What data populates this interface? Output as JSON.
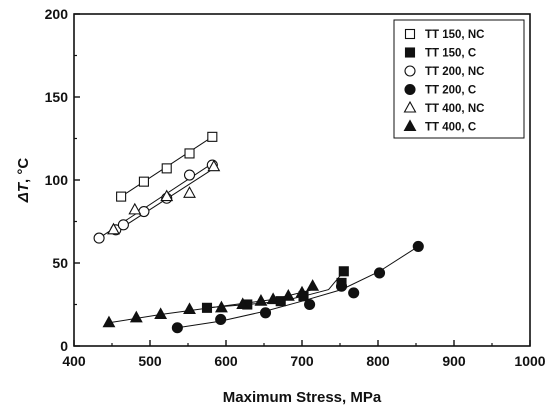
{
  "chart_data": {
    "type": "scatter",
    "xlabel": "Maximum Stress, MPa",
    "ylabel_symbol": "ΔT",
    "ylabel_unit": ", °C",
    "xlim": [
      400,
      1000
    ],
    "ylim": [
      0,
      200
    ],
    "x_ticks": [
      400,
      500,
      600,
      700,
      800,
      900,
      1000
    ],
    "y_ticks": [
      0,
      50,
      100,
      150,
      200
    ],
    "grid": false,
    "legend_position": "top-right",
    "series": [
      {
        "name": "TT 150, NC",
        "marker": "square-open",
        "points": [
          [
            462,
            90
          ],
          [
            492,
            99
          ],
          [
            522,
            107
          ],
          [
            552,
            116
          ],
          [
            582,
            126
          ]
        ],
        "fit": [
          [
            462,
            90
          ],
          [
            582,
            126
          ]
        ]
      },
      {
        "name": "TT 150, C",
        "marker": "square-filled",
        "points": [
          [
            575,
            23
          ],
          [
            628,
            25
          ],
          [
            672,
            27
          ],
          [
            702,
            30
          ],
          [
            752,
            38
          ],
          [
            755,
            45
          ]
        ],
        "fit": [
          [
            575,
            23
          ],
          [
            628,
            25
          ],
          [
            672,
            27
          ],
          [
            702,
            30
          ],
          [
            735,
            34
          ],
          [
            755,
            45
          ]
        ]
      },
      {
        "name": "TT 200, NC",
        "marker": "circle-open",
        "points": [
          [
            433,
            65
          ],
          [
            455,
            70
          ],
          [
            465,
            73
          ],
          [
            492,
            81
          ],
          [
            522,
            89
          ],
          [
            552,
            103
          ],
          [
            582,
            109
          ]
        ],
        "fit": [
          [
            433,
            65
          ],
          [
            582,
            110
          ]
        ]
      },
      {
        "name": "TT 200, C",
        "marker": "circle-filled",
        "points": [
          [
            536,
            11
          ],
          [
            593,
            16
          ],
          [
            652,
            20
          ],
          [
            710,
            25
          ],
          [
            752,
            36
          ],
          [
            768,
            32
          ],
          [
            802,
            44
          ],
          [
            853,
            60
          ]
        ],
        "fit": [
          [
            536,
            11
          ],
          [
            593,
            15
          ],
          [
            652,
            21
          ],
          [
            700,
            27
          ],
          [
            752,
            34
          ],
          [
            802,
            45
          ],
          [
            853,
            60
          ]
        ]
      },
      {
        "name": "TT 400, NC",
        "marker": "triangle-open",
        "points": [
          [
            452,
            70
          ],
          [
            480,
            82
          ],
          [
            522,
            90
          ],
          [
            552,
            92
          ],
          [
            584,
            108
          ]
        ],
        "fit": [
          [
            452,
            68
          ],
          [
            584,
            107
          ]
        ]
      },
      {
        "name": "TT 400, C",
        "marker": "triangle-filled",
        "points": [
          [
            446,
            14
          ],
          [
            482,
            17
          ],
          [
            514,
            19
          ],
          [
            552,
            22
          ],
          [
            594,
            23
          ],
          [
            622,
            25
          ],
          [
            646,
            27
          ],
          [
            662,
            28
          ],
          [
            682,
            30
          ],
          [
            700,
            32
          ],
          [
            714,
            36
          ]
        ],
        "fit": [
          [
            446,
            14
          ],
          [
            514,
            19
          ],
          [
            594,
            24
          ],
          [
            662,
            28
          ],
          [
            714,
            34
          ]
        ]
      }
    ]
  }
}
